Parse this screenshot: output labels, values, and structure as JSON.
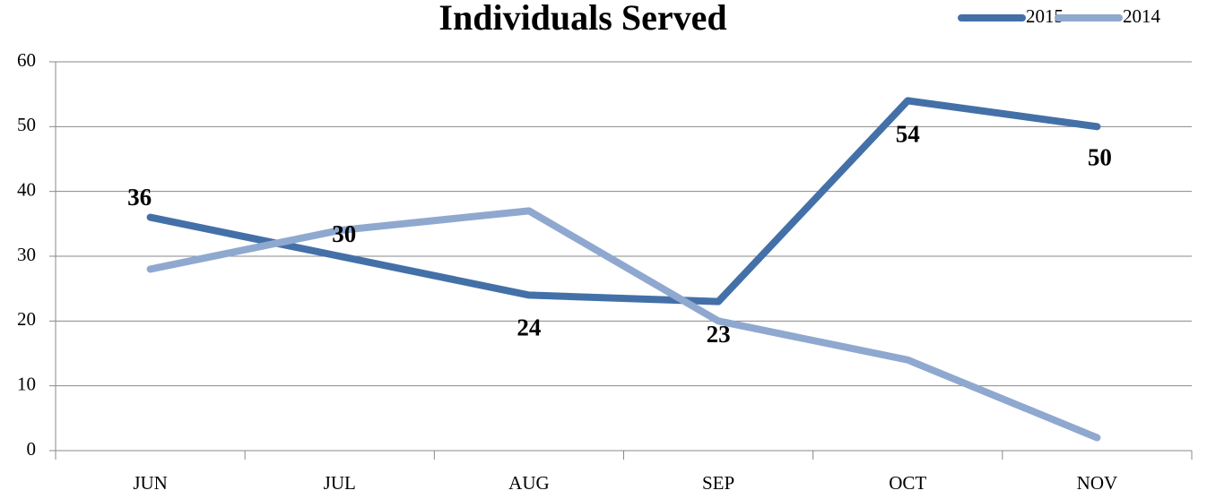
{
  "chart_data": {
    "type": "line",
    "title": "Individuals Served",
    "categories": [
      "JUN",
      "JUL",
      "AUG",
      "SEP",
      "OCT",
      "NOV"
    ],
    "series": [
      {
        "name": "2015",
        "color": "#4470a8",
        "values": [
          36,
          30,
          24,
          23,
          54,
          50
        ],
        "data_labels": true
      },
      {
        "name": "2014",
        "color": "#8fa8cf",
        "values": [
          28,
          34,
          37,
          20,
          14,
          2
        ],
        "data_labels": false
      }
    ],
    "ylim": [
      0,
      60
    ],
    "yticks": [
      0,
      10,
      20,
      30,
      40,
      50,
      60
    ],
    "grid": true,
    "legend": "top-right"
  }
}
